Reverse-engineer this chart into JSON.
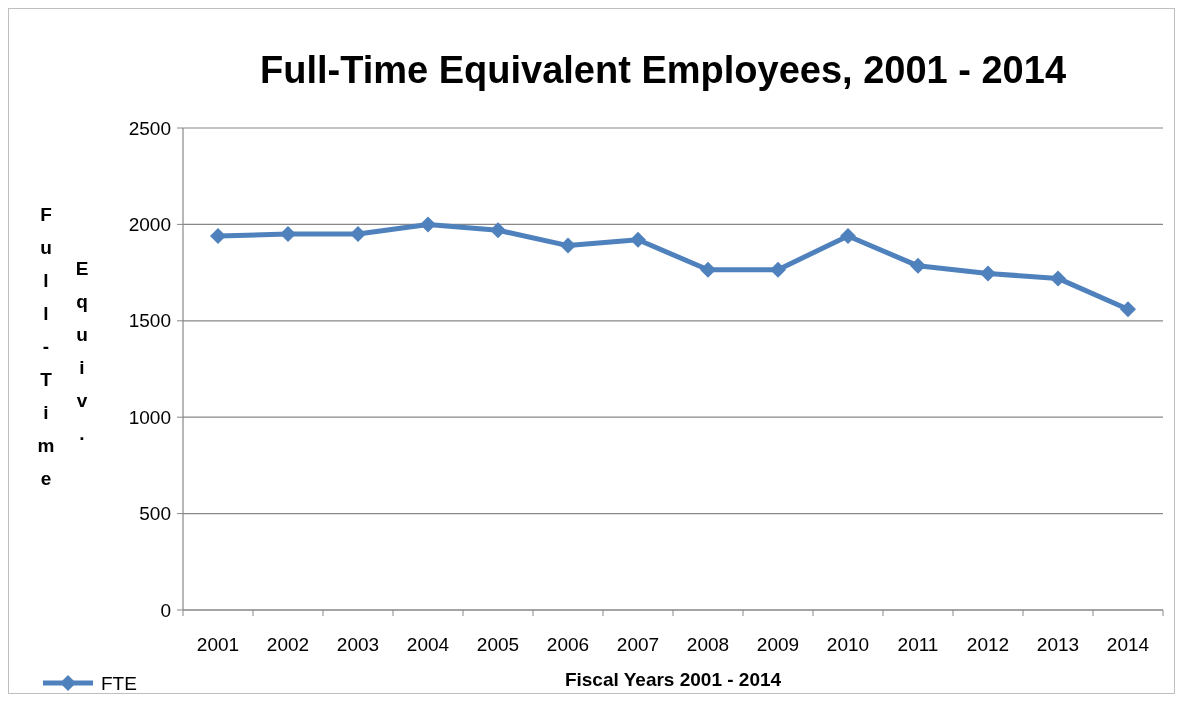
{
  "chart_data": {
    "type": "line",
    "title": "Full-Time Equivalent Employees, 2001 - 2014",
    "xlabel": "Fiscal Years 2001 - 2014",
    "ylabel": "Full-Time Equiv.",
    "categories": [
      "2001",
      "2002",
      "2003",
      "2004",
      "2005",
      "2006",
      "2007",
      "2008",
      "2009",
      "2010",
      "2011",
      "2012",
      "2013",
      "2014"
    ],
    "series": [
      {
        "name": "FTE",
        "color": "#4f81bd",
        "values": [
          1940,
          1950,
          1950,
          2000,
          1970,
          1890,
          1920,
          1765,
          1765,
          1940,
          1785,
          1745,
          1720,
          1560
        ]
      }
    ],
    "ylim": [
      0,
      2500
    ],
    "yticks": [
      0,
      500,
      1000,
      1500,
      2000,
      2500
    ],
    "grid": "y",
    "legend": "bottom left",
    "marker": "diamond",
    "line_style": "solid"
  }
}
